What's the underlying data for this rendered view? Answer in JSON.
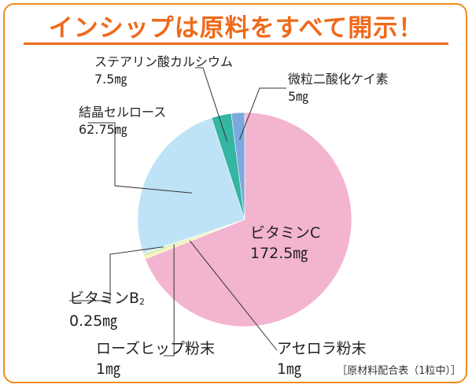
{
  "title": "インシップは原料をすべて開示！",
  "note": "［原材料配合表（1粒中）］",
  "colors": {
    "accent": "#ee6a1a",
    "frame": "#f08c1e"
  },
  "chart_data": {
    "type": "pie",
    "unit": "mg",
    "slices": [
      {
        "name": "ビタミンC",
        "value_text": "172.5㎎",
        "value": 172.5,
        "color": "#f3b4cf"
      },
      {
        "name": "アセロラ粉末",
        "value_text": "1㎎",
        "value": 1,
        "color": "#f4f3a8"
      },
      {
        "name": "ローズヒップ粉末",
        "value_text": "1㎎",
        "value": 1,
        "color": "#d8ecb2"
      },
      {
        "name": "ビタミンB",
        "name_sub": "2",
        "value_text": "0.25㎎",
        "value": 0.25,
        "color": "#c9c0e2"
      },
      {
        "name": "結晶セルロース",
        "value_text": "62.75㎎",
        "value": 62.75,
        "color": "#bfe3f6"
      },
      {
        "name": "ステアリン酸カルシウム",
        "value_text": "7.5㎎",
        "value": 7.5,
        "color": "#35b5a2"
      },
      {
        "name": "微粒二酸化ケイ素",
        "value_text": "5㎎",
        "value": 5,
        "color": "#7aa9dd"
      }
    ]
  }
}
